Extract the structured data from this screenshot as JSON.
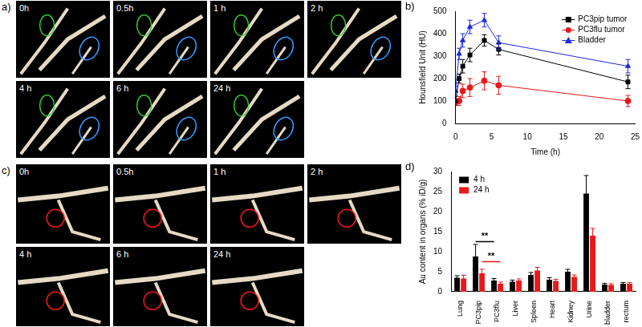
{
  "panels": [
    {
      "label": "a)",
      "frames": [
        "0h",
        "0.5h",
        "1 h",
        "2 h",
        "4 h",
        "6 h",
        "24 h"
      ]
    },
    {
      "label": "c)",
      "frames": [
        "0h",
        "0.5h",
        "1 h",
        "2 h",
        "4 h",
        "6 h",
        "24 h"
      ]
    }
  ],
  "chart_data": [
    {
      "title": "b)",
      "type": "line",
      "x_label": "Time (h)",
      "y_label": "Hounsfield Unit (HU)",
      "x": [
        0,
        0.5,
        1,
        2,
        4,
        6,
        24
      ],
      "xlim": [
        0,
        25
      ],
      "xticks": [
        0,
        5,
        10,
        15,
        20,
        25
      ],
      "ylim": [
        0,
        500
      ],
      "yticks": [
        0,
        100,
        200,
        300,
        400,
        500
      ],
      "grid": false,
      "legend": "upper right",
      "series": [
        {
          "name": "PC3pip tumor",
          "color": "#000000",
          "marker": "square",
          "values": [
            100,
            200,
            255,
            305,
            370,
            330,
            185
          ],
          "errors": [
            20,
            20,
            30,
            30,
            25,
            25,
            30
          ]
        },
        {
          "name": "PC3flu tumor",
          "color": "#e8191b",
          "marker": "circle",
          "values": [
            95,
            100,
            145,
            160,
            190,
            170,
            100
          ],
          "errors": [
            10,
            20,
            30,
            40,
            40,
            40,
            25
          ]
        },
        {
          "name": "Bladder",
          "color": "#1f28e0",
          "marker": "triangle",
          "values": [
            145,
            310,
            370,
            430,
            460,
            360,
            255
          ],
          "errors": [
            20,
            25,
            30,
            30,
            30,
            30,
            30
          ]
        }
      ]
    },
    {
      "title": "d)",
      "type": "bar",
      "y_label": "Au content in organs (% iD/g)",
      "categories": [
        "Lung",
        "PC3pip",
        "PC3flu",
        "Liver",
        "Spleen",
        "Heart",
        "Kidney",
        "Urine",
        "bladder",
        "rectum"
      ],
      "ylim": [
        0,
        30
      ],
      "yticks": [
        0,
        5,
        10,
        15,
        20,
        25,
        30
      ],
      "grid": false,
      "legend": "upper left",
      "series": [
        {
          "name": "4 h",
          "color": "#000000",
          "values": [
            3.5,
            8.8,
            2.8,
            2.5,
            4.2,
            3.0,
            5.0,
            24.5,
            1.8,
            2.0
          ],
          "errors": [
            0.5,
            3.0,
            0.5,
            0.4,
            0.6,
            0.5,
            0.6,
            4.5,
            0.3,
            0.3
          ]
        },
        {
          "name": "24 h",
          "color": "#e8191b",
          "values": [
            3.3,
            4.6,
            2.0,
            2.8,
            5.3,
            2.7,
            3.7,
            14.0,
            1.7,
            2.0
          ],
          "errors": [
            0.8,
            1.0,
            0.4,
            0.4,
            0.8,
            0.4,
            0.5,
            1.8,
            0.3,
            0.3
          ]
        }
      ],
      "annotations": [
        {
          "text": "**",
          "from": "PC3pip",
          "to": "PC3flu",
          "series": "4 h",
          "y": 12.5
        },
        {
          "text": "**",
          "from": "PC3pip",
          "to": "PC3flu",
          "series": "24 h",
          "y": 7.5
        }
      ]
    }
  ]
}
